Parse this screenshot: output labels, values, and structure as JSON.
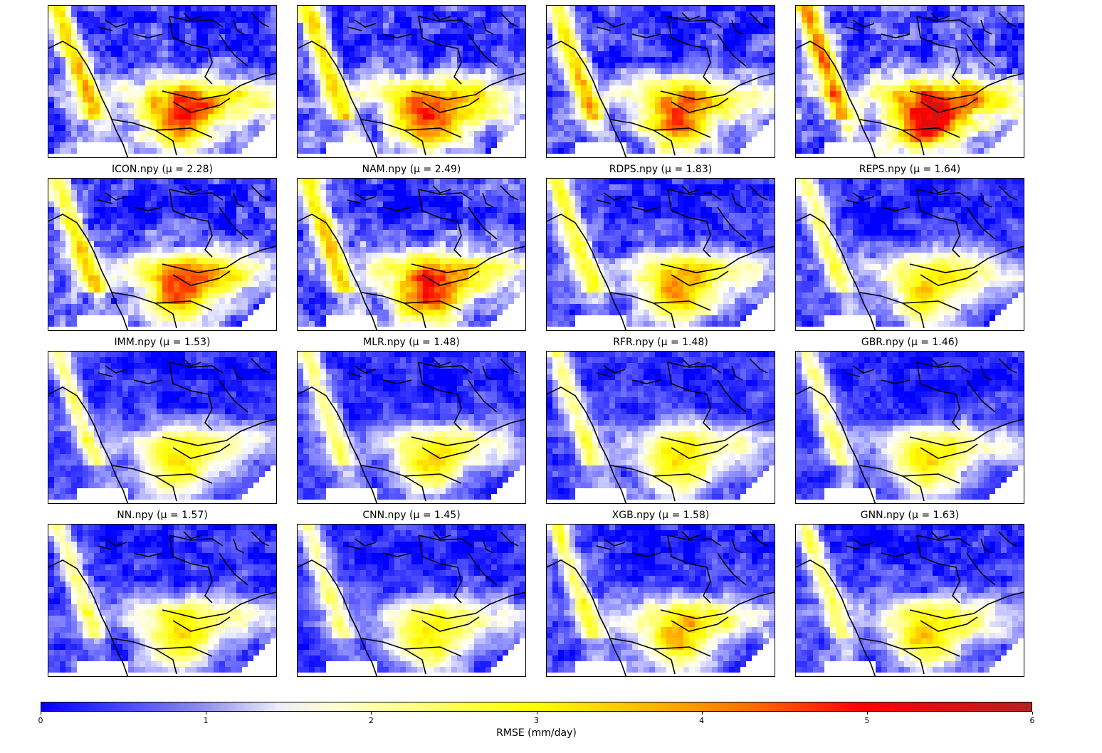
{
  "panels": [
    {
      "name": "",
      "label": "",
      "mu": "",
      "mean": null
    },
    {
      "name": "",
      "label": "",
      "mu": "",
      "mean": null
    },
    {
      "name": "",
      "label": "",
      "mu": "",
      "mean": null
    },
    {
      "name": "",
      "label": "",
      "mu": "",
      "mean": null
    },
    {
      "name": "ICON.npy",
      "label": "μ =",
      "mu": "2.28",
      "mean": 2.28
    },
    {
      "name": "NAM.npy",
      "label": "μ =",
      "mu": "2.49",
      "mean": 2.49
    },
    {
      "name": "RDPS.npy",
      "label": "μ =",
      "mu": "1.83",
      "mean": 1.83
    },
    {
      "name": "REPS.npy",
      "label": "μ =",
      "mu": "1.64",
      "mean": 1.64
    },
    {
      "name": "IMM.npy",
      "label": "μ =",
      "mu": "1.53",
      "mean": 1.53
    },
    {
      "name": "MLR.npy",
      "label": "μ =",
      "mu": "1.48",
      "mean": 1.48
    },
    {
      "name": "RFR.npy",
      "label": "μ =",
      "mu": "1.48",
      "mean": 1.48
    },
    {
      "name": "GBR.npy",
      "label": "μ =",
      "mu": "1.46",
      "mean": 1.46
    },
    {
      "name": "NN.npy",
      "label": "μ =",
      "mu": "1.57",
      "mean": 1.57
    },
    {
      "name": "CNN.npy",
      "label": "μ =",
      "mu": "1.45",
      "mean": 1.45
    },
    {
      "name": "XGB.npy",
      "label": "μ =",
      "mu": "1.58",
      "mean": 1.58
    },
    {
      "name": "GNN.npy",
      "label": "μ =",
      "mu": "1.63",
      "mean": 1.63
    }
  ],
  "colorbar": {
    "label": "RMSE (mm/day)",
    "ticks": [
      "0",
      "1",
      "2",
      "3",
      "4",
      "5",
      "6"
    ],
    "min": 0,
    "max": 6,
    "colors": [
      "#0000ff",
      "#ffffff",
      "#ffff00",
      "#ff0000",
      "#b22222"
    ]
  },
  "chart_data": {
    "type": "heatmap",
    "title": "",
    "panel_titles": [
      "",
      "",
      "",
      "",
      "ICON.npy (μ = 2.28)",
      "NAM.npy (μ = 2.49)",
      "RDPS.npy (μ = 1.83)",
      "REPS.npy (μ = 1.64)",
      "IMM.npy (μ = 1.53)",
      "MLR.npy (μ = 1.48)",
      "RFR.npy (μ = 1.48)",
      "GBR.npy (μ = 1.46)",
      "NN.npy (μ = 1.57)",
      "CNN.npy (μ = 1.45)",
      "XGB.npy (μ = 1.58)",
      "GNN.npy (μ = 1.63)"
    ],
    "panel_means": [
      null,
      null,
      null,
      null,
      2.28,
      2.49,
      1.83,
      1.64,
      1.53,
      1.48,
      1.48,
      1.46,
      1.57,
      1.45,
      1.58,
      1.63
    ],
    "grid": "4x4",
    "colorbar_label": "RMSE (mm/day)",
    "vmin": 0,
    "vmax": 6,
    "colormap": [
      "#0000ff",
      "#ffffff",
      "#ffff00",
      "#ff0000",
      "#b22222"
    ]
  }
}
